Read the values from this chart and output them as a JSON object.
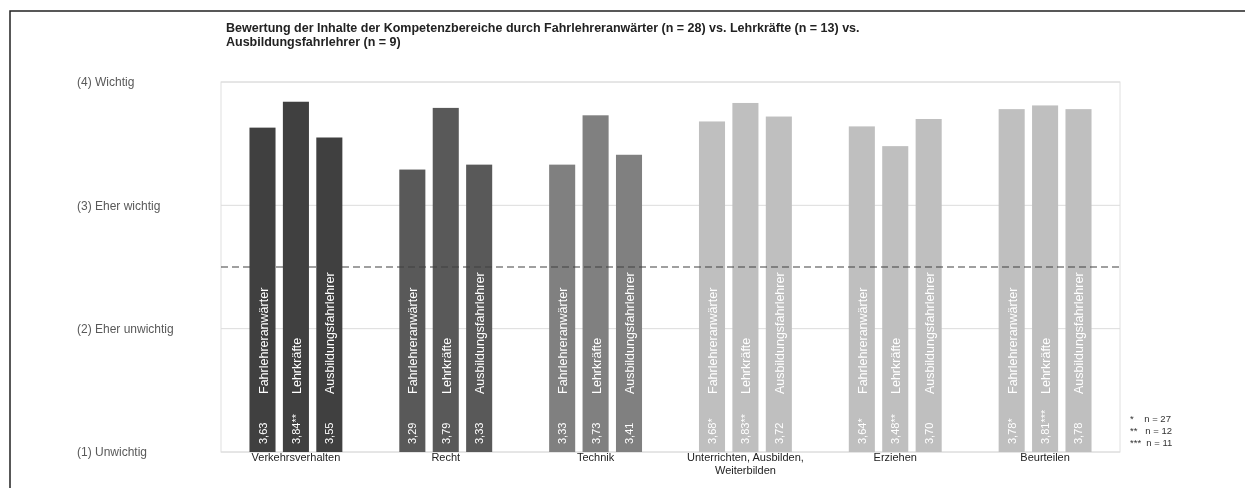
{
  "chart_data": {
    "type": "bar",
    "title": "Bewertung der Inhalte der Kompetenzbereiche durch Fahrlehreranwärter (n = 28) vs. Lehrkräfte (n = 13) vs. Ausbildungsfahrlehrer (n = 9)",
    "categories": [
      "Verkehrsverhalten",
      "Recht",
      "Technik",
      "Unterrichten, Ausbilden, Weiterbilden",
      "Erziehen",
      "Beurteilen"
    ],
    "series": [
      {
        "name": "Fahrlehreranwärter",
        "colors": [
          "#404040",
          "#595959",
          "#808080",
          "#bfbfbf",
          "#bfbfbf",
          "#bfbfbf"
        ],
        "values": [
          3.63,
          3.29,
          3.33,
          3.68,
          3.64,
          3.78
        ],
        "value_labels": [
          "3,63",
          "3,29",
          "3,33",
          "3,68*",
          "3,64*",
          "3,78*"
        ]
      },
      {
        "name": "Lehrkräfte",
        "colors": [
          "#404040",
          "#595959",
          "#808080",
          "#bfbfbf",
          "#bfbfbf",
          "#bfbfbf"
        ],
        "values": [
          3.84,
          3.79,
          3.73,
          3.83,
          3.48,
          3.81
        ],
        "value_labels": [
          "3,84**",
          "3,79",
          "3,73",
          "3,83**",
          "3,48**",
          "3,81***"
        ]
      },
      {
        "name": "Ausbildungsfahrlehrer",
        "colors": [
          "#404040",
          "#595959",
          "#808080",
          "#bfbfbf",
          "#bfbfbf",
          "#bfbfbf"
        ],
        "values": [
          3.55,
          3.33,
          3.41,
          3.72,
          3.7,
          3.78
        ],
        "value_labels": [
          "3,55",
          "3,33",
          "3,41",
          "3,72",
          "3,70",
          "3,78"
        ]
      }
    ],
    "ylim": [
      1,
      4
    ],
    "yticks": [
      {
        "value": 1,
        "label": "(1) Unwichtig"
      },
      {
        "value": 2,
        "label": "(2) Eher unwichtig"
      },
      {
        "value": 3,
        "label": "(3) Eher wichtig"
      },
      {
        "value": 4,
        "label": "(4) Wichtig"
      }
    ],
    "grid": "y",
    "ref_lines": [
      {
        "axis": "y",
        "value": 2.5,
        "line_style": "dashed",
        "color": "#404040"
      }
    ],
    "annotations": [
      "*    n = 27",
      "**   n = 12",
      "***  n = 11"
    ]
  }
}
